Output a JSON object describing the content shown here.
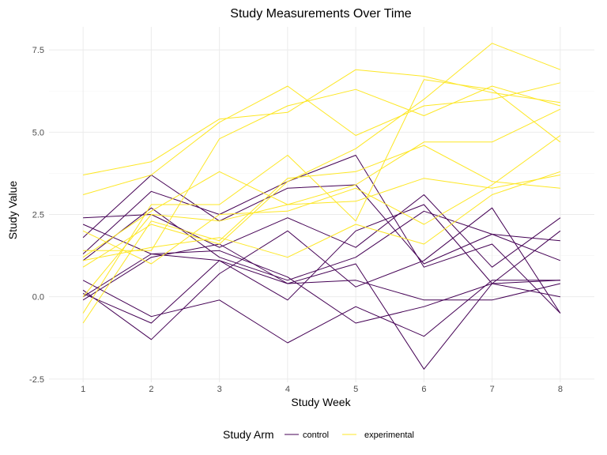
{
  "chart_data": {
    "type": "line",
    "title": "Study Measurements Over Time",
    "xlabel": "Study Week",
    "ylabel": "Study Value",
    "x": [
      1,
      2,
      3,
      4,
      5,
      6,
      7,
      8
    ],
    "xlim": [
      0.5,
      8.5
    ],
    "ylim": [
      -2.6,
      8.2
    ],
    "yticks": [
      -2.5,
      0,
      2.5,
      5,
      7.5
    ],
    "ytick_labels": [
      "-2.5",
      "0.0",
      "2.5",
      "5.0",
      "7.5"
    ],
    "xtick_labels": [
      "1",
      "2",
      "3",
      "4",
      "5",
      "6",
      "7",
      "8"
    ],
    "grid": true,
    "legend": {
      "title": "Study Arm",
      "position": "bottom",
      "entries": [
        {
          "name": "control",
          "color": "#440154"
        },
        {
          "name": "experimental",
          "color": "#FDE725"
        }
      ]
    },
    "series": [
      {
        "group": "control",
        "values": [
          0.2,
          -1.3,
          0.7,
          2.0,
          0.3,
          1.1,
          2.7,
          -0.5
        ]
      },
      {
        "group": "control",
        "values": [
          1.1,
          2.7,
          1.2,
          0.5,
          1.2,
          2.6,
          1.9,
          1.7
        ]
      },
      {
        "group": "control",
        "values": [
          -0.1,
          1.2,
          1.6,
          0.4,
          0.5,
          -0.1,
          -0.1,
          0.4
        ]
      },
      {
        "group": "control",
        "values": [
          2.4,
          2.5,
          1.5,
          2.4,
          1.5,
          3.1,
          0.9,
          2.4
        ]
      },
      {
        "group": "control",
        "values": [
          1.8,
          3.7,
          2.3,
          3.3,
          3.4,
          1.0,
          1.9,
          1.1
        ]
      },
      {
        "group": "control",
        "values": [
          0.1,
          -0.8,
          1.1,
          -0.1,
          2.0,
          2.8,
          0.4,
          0.0
        ]
      },
      {
        "group": "control",
        "values": [
          2.2,
          1.3,
          1.1,
          0.4,
          1.0,
          -2.2,
          0.4,
          0.5
        ]
      },
      {
        "group": "control",
        "values": [
          1.3,
          3.2,
          2.5,
          3.5,
          4.3,
          0.9,
          1.6,
          -0.5
        ]
      },
      {
        "group": "control",
        "values": [
          0.5,
          -0.6,
          -0.1,
          -1.4,
          -0.3,
          -1.2,
          0.5,
          0.5
        ]
      },
      {
        "group": "control",
        "values": [
          0.0,
          1.3,
          1.4,
          0.6,
          -0.8,
          -0.3,
          0.4,
          2.0
        ]
      },
      {
        "group": "experimental",
        "values": [
          3.7,
          4.1,
          5.4,
          5.6,
          6.9,
          6.7,
          6.2,
          5.9
        ]
      },
      {
        "group": "experimental",
        "values": [
          3.1,
          3.7,
          5.3,
          6.4,
          4.9,
          5.8,
          6.0,
          6.5
        ]
      },
      {
        "group": "experimental",
        "values": [
          -0.5,
          2.8,
          2.8,
          4.3,
          2.3,
          6.6,
          6.3,
          4.7
        ]
      },
      {
        "group": "experimental",
        "values": [
          1.2,
          2.6,
          3.8,
          2.8,
          3.4,
          4.7,
          4.7,
          5.7
        ]
      },
      {
        "group": "experimental",
        "values": [
          -0.8,
          2.3,
          1.7,
          3.6,
          3.8,
          4.6,
          3.5,
          3.3
        ]
      },
      {
        "group": "experimental",
        "values": [
          1.4,
          1.4,
          4.8,
          5.8,
          6.3,
          5.5,
          6.4,
          5.8
        ]
      },
      {
        "group": "experimental",
        "values": [
          0.0,
          2.5,
          2.3,
          2.8,
          2.9,
          3.6,
          3.3,
          3.7
        ]
      },
      {
        "group": "experimental",
        "values": [
          1.1,
          1.5,
          1.8,
          1.2,
          2.2,
          1.6,
          3.1,
          3.8
        ]
      },
      {
        "group": "experimental",
        "values": [
          0.9,
          2.2,
          1.6,
          3.5,
          4.5,
          6.0,
          7.7,
          6.9
        ]
      },
      {
        "group": "experimental",
        "values": [
          2.0,
          1.0,
          2.5,
          2.6,
          3.3,
          2.2,
          3.4,
          4.9
        ]
      }
    ]
  }
}
